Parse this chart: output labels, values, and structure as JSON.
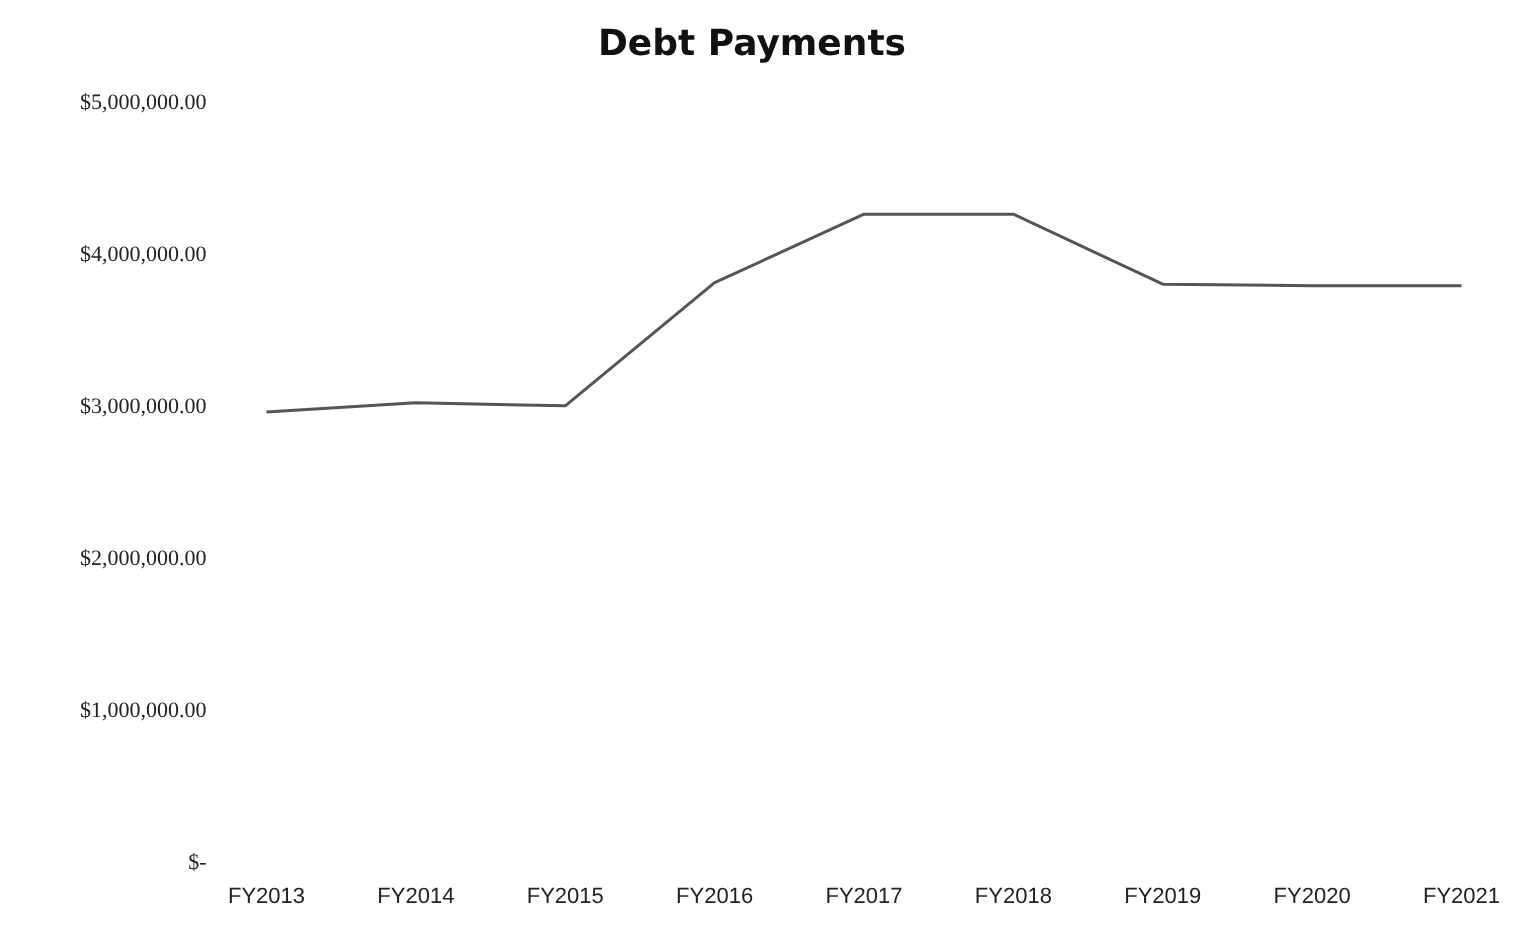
{
  "chart_data": {
    "type": "line",
    "title": "Debt Payments",
    "categories": [
      "FY2013",
      "FY2014",
      "FY2015",
      "FY2016",
      "FY2017",
      "FY2018",
      "FY2019",
      "FY2020",
      "FY2021"
    ],
    "values": [
      2970000,
      3030000,
      3010000,
      3820000,
      4270000,
      4270000,
      3810000,
      3800000,
      3800000
    ],
    "color": "#555555",
    "ylim": [
      0,
      5000000
    ],
    "yticks": [
      {
        "value": 0,
        "label": "$-"
      },
      {
        "value": 1000000,
        "label": "$1,000,000.00"
      },
      {
        "value": 2000000,
        "label": "$2,000,000.00"
      },
      {
        "value": 3000000,
        "label": "$3,000,000.00"
      },
      {
        "value": 4000000,
        "label": "$4,000,000.00"
      },
      {
        "value": 5000000,
        "label": "$5,000,000.00"
      }
    ],
    "grid": false,
    "legend": false,
    "marker": "none",
    "line_style": "solid"
  }
}
